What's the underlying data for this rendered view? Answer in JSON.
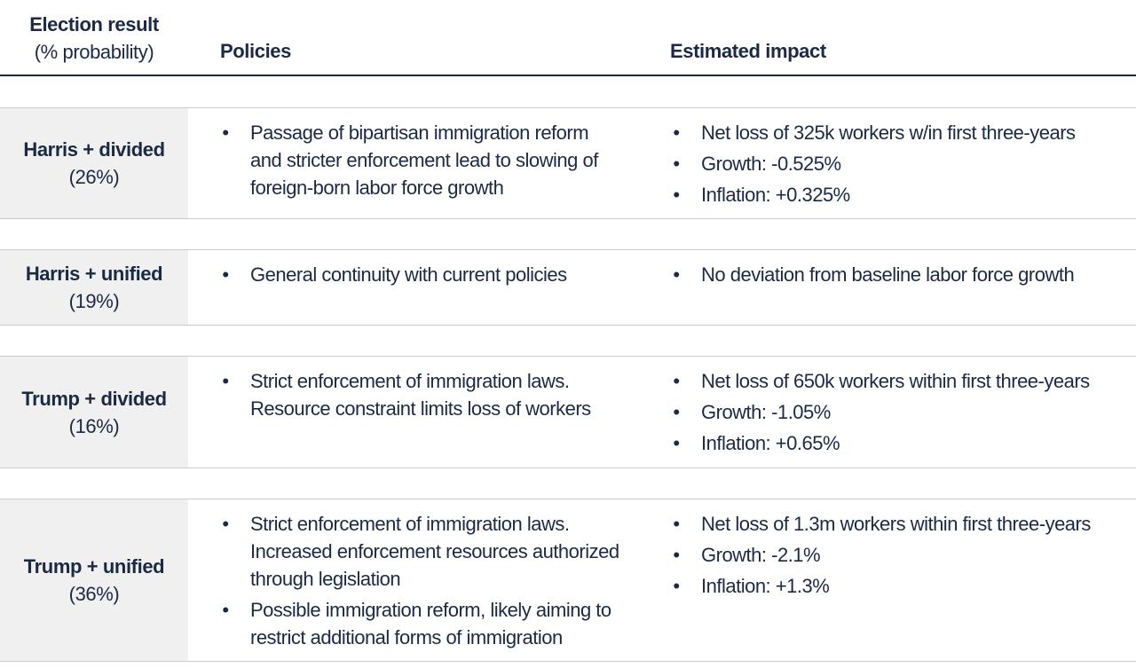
{
  "header": {
    "election_title": "Election result",
    "election_subtitle": "(% probability)",
    "policies": "Policies",
    "impact": "Estimated impact"
  },
  "rows": [
    {
      "name": "Harris + divided",
      "probability": "(26%)",
      "policies": [
        "Passage of bipartisan immigration reform and stricter enforcement lead to slowing of foreign-born labor force growth"
      ],
      "impact": [
        "Net loss of 325k workers w/in first three-years",
        "Growth: -0.525%",
        "Inflation: +0.325%"
      ]
    },
    {
      "name": "Harris + unified",
      "probability": "(19%)",
      "policies": [
        "General continuity with current policies"
      ],
      "impact": [
        "No deviation from baseline labor force growth"
      ]
    },
    {
      "name": "Trump + divided",
      "probability": "(16%)",
      "policies": [
        "Strict enforcement of immigration laws. Resource constraint limits loss of workers"
      ],
      "impact": [
        "Net loss of 650k workers within first three-years",
        "Growth: -1.05%",
        "Inflation: +0.65%"
      ]
    },
    {
      "name": "Trump + unified",
      "probability": "(36%)",
      "policies": [
        "Strict enforcement of immigration laws. Increased enforcement resources authorized through legislation",
        "Possible immigration reform, likely aiming to restrict additional forms of immigration"
      ],
      "impact": [
        "Net loss of 1.3m workers within first three-years",
        "Growth: -2.1%",
        "Inflation: +1.3%"
      ]
    }
  ]
}
